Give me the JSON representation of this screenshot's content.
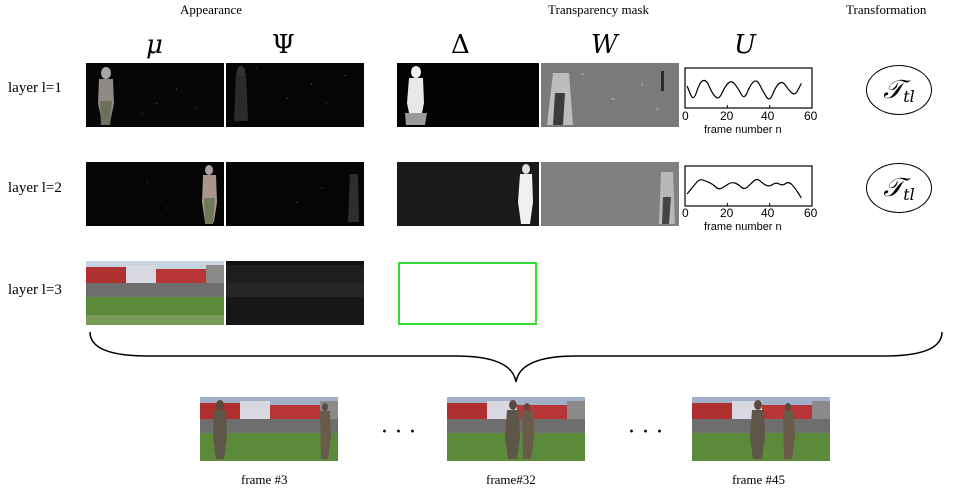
{
  "headers": {
    "appearance": "Appearance",
    "transparency": "Transparency mask",
    "transformation": "Transformation"
  },
  "symbols": {
    "mu": "μ",
    "psi": "Ψ",
    "delta": "Δ",
    "w": "W",
    "u": "U"
  },
  "layers": [
    {
      "label": "layer l=1",
      "transform": "𝒯",
      "transform_sub": "tl"
    },
    {
      "label": "layer l=2",
      "transform": "𝒯",
      "transform_sub": "tl"
    },
    {
      "label": "layer l=3"
    }
  ],
  "plots": [
    {
      "xticks": [
        "0",
        "20",
        "40",
        "60"
      ],
      "xlabel": "frame number n",
      "chart_data": {
        "type": "line",
        "xlim": [
          0,
          60
        ],
        "x": [
          1,
          4,
          7,
          10,
          13,
          16,
          19,
          22,
          25,
          28,
          31,
          34,
          37,
          40,
          43,
          46,
          49,
          52,
          55
        ],
        "y": [
          0.55,
          0.15,
          0.65,
          0.72,
          0.35,
          0.2,
          0.55,
          0.7,
          0.5,
          0.2,
          0.6,
          0.72,
          0.4,
          0.15,
          0.55,
          0.68,
          0.45,
          0.3,
          0.62
        ]
      }
    },
    {
      "xticks": [
        "0",
        "20",
        "40",
        "60"
      ],
      "xlabel": "frame number n",
      "chart_data": {
        "type": "line",
        "xlim": [
          0,
          60
        ],
        "x": [
          1,
          4,
          7,
          10,
          13,
          16,
          19,
          22,
          25,
          28,
          31,
          34,
          37,
          40,
          43,
          46,
          49,
          52,
          55
        ],
        "y": [
          0.3,
          0.5,
          0.68,
          0.62,
          0.55,
          0.4,
          0.5,
          0.6,
          0.55,
          0.4,
          0.55,
          0.7,
          0.55,
          0.48,
          0.6,
          0.5,
          0.62,
          0.45,
          0.2
        ]
      }
    }
  ],
  "frames": [
    {
      "caption": "frame #3"
    },
    {
      "caption": "frame#32"
    },
    {
      "caption": "frame #45"
    }
  ],
  "ellipsis": "· · ·",
  "colors": {
    "empty_mask_border": "#33dd33",
    "grass": "#5a8a3a",
    "building_red": "#b03030"
  }
}
